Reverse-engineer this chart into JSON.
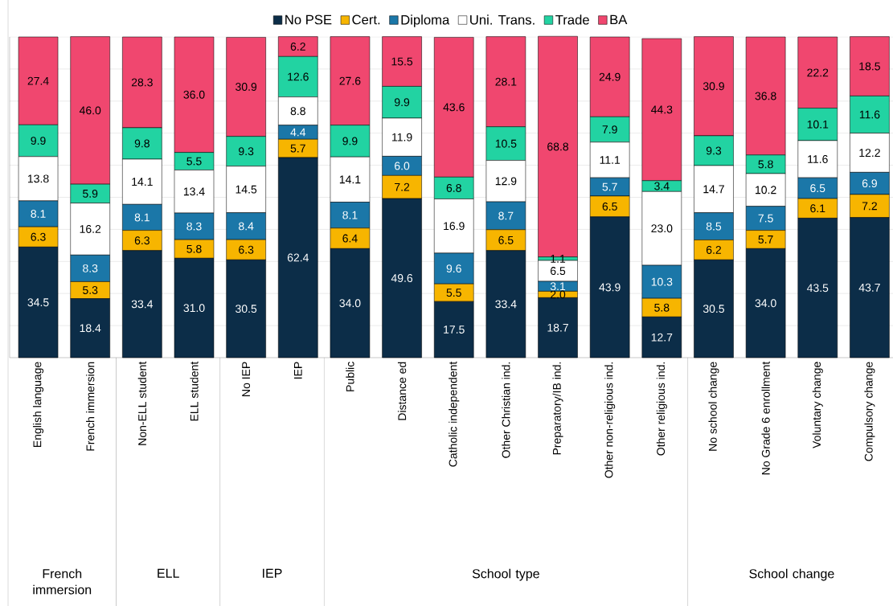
{
  "chart_data": {
    "type": "bar",
    "stacked": true,
    "legend": "top",
    "grid": "y",
    "tick_labels": "x",
    "categories": [
      "English language",
      "French immersion",
      "Non-ELL student",
      "ELL student",
      "No IEP",
      "IEP",
      "Public",
      "Distance ed",
      "Catholic independent",
      "Other Christian ind.",
      "Preparatory/IB ind.",
      "Other non-religious ind.",
      "Other religious ind.",
      "No school change",
      "No Grade 6 enrollment",
      "Voluntary change",
      "Compulsory change"
    ],
    "ylim": [
      0,
      100
    ],
    "series": [
      {
        "name": "No PSE",
        "color": "#0c2d48",
        "values": [
          34.5,
          18.4,
          33.4,
          31.0,
          30.5,
          62.4,
          34.0,
          49.6,
          17.5,
          33.4,
          18.7,
          43.9,
          12.7,
          30.5,
          34.0,
          43.5,
          43.7
        ],
        "value_labels": [
          "34.5",
          "18.4",
          "33.4",
          "31.0",
          "30.5",
          "62.4",
          "34.0",
          "49.6",
          "17.5",
          "33.4",
          "18.7",
          "43.9",
          "12.7",
          "30.5",
          "34.0",
          "43.5",
          "43.7"
        ]
      },
      {
        "name": "Cert.",
        "color": "#f7b500",
        "values": [
          6.3,
          5.3,
          6.3,
          5.8,
          6.3,
          5.7,
          6.4,
          7.2,
          5.5,
          6.5,
          2.0,
          6.5,
          5.8,
          6.2,
          5.7,
          6.1,
          7.2
        ],
        "value_labels": [
          "6.3",
          "5.3",
          "6.3",
          "5.8",
          "6.3",
          "5.7",
          "6.4",
          "7.2",
          "5.5",
          "6.5",
          "2.0",
          "6.5",
          "5.8",
          "6.2",
          "5.7",
          "6.1",
          "7.2"
        ]
      },
      {
        "name": "Diploma",
        "color": "#1b77a8",
        "values": [
          8.1,
          8.3,
          8.1,
          8.3,
          8.4,
          4.4,
          8.1,
          6.0,
          9.6,
          8.7,
          3.1,
          5.7,
          10.3,
          8.5,
          7.5,
          6.5,
          6.9
        ],
        "value_labels": [
          "8.1",
          "8.3",
          "8.1",
          "8.3",
          "8.4",
          "4.4",
          "8.1",
          "6.0",
          "9.6",
          "8.7",
          "3.1",
          "5.7",
          "10.3",
          "8.5",
          "7.5",
          "6.5",
          "6.9"
        ]
      },
      {
        "name": "Uni. Trans.",
        "color": "#ffffff",
        "values": [
          13.8,
          16.2,
          14.1,
          13.4,
          14.5,
          8.8,
          14.1,
          11.9,
          16.9,
          12.9,
          6.5,
          11.1,
          23.0,
          14.7,
          10.2,
          11.6,
          12.2
        ],
        "value_labels": [
          "13.8",
          "16.2",
          "14.1",
          "13.4",
          "14.5",
          "8.8",
          "14.1",
          "11.9",
          "16.9",
          "12.9",
          "6.5",
          "11.1",
          "23.0",
          "14.7",
          "10.2",
          "11.6",
          "12.2"
        ]
      },
      {
        "name": "Trade",
        "color": "#22d3a2",
        "values": [
          9.9,
          5.9,
          9.8,
          5.5,
          9.3,
          12.6,
          9.9,
          9.9,
          6.8,
          10.5,
          1.1,
          7.9,
          3.4,
          9.3,
          5.8,
          10.1,
          11.6
        ],
        "value_labels": [
          "9.9",
          "5.9",
          "9.8",
          "5.5",
          "9.3",
          "12.6",
          "9.9",
          "9.9",
          "6.8",
          "10.5",
          "1.1",
          "7.9",
          "3.4",
          "9.3",
          "5.8",
          "10.1",
          "11.6"
        ]
      },
      {
        "name": "BA",
        "color": "#f0476f",
        "values": [
          27.4,
          46.0,
          28.3,
          36.0,
          30.9,
          6.2,
          27.6,
          15.5,
          43.6,
          28.1,
          68.8,
          24.9,
          44.3,
          30.9,
          36.8,
          22.2,
          18.5
        ],
        "value_labels": [
          "27.4",
          "46.0",
          "28.3",
          "36.0",
          "30.9",
          "6.2",
          "27.6",
          "15.5",
          "43.6",
          "28.1",
          "68.8",
          "24.9",
          "44.3",
          "30.9",
          "36.8",
          "22.2",
          "18.5"
        ]
      }
    ],
    "annotations": [
      "French immersion",
      "ELL",
      "IEP",
      "School type",
      "School change"
    ]
  }
}
